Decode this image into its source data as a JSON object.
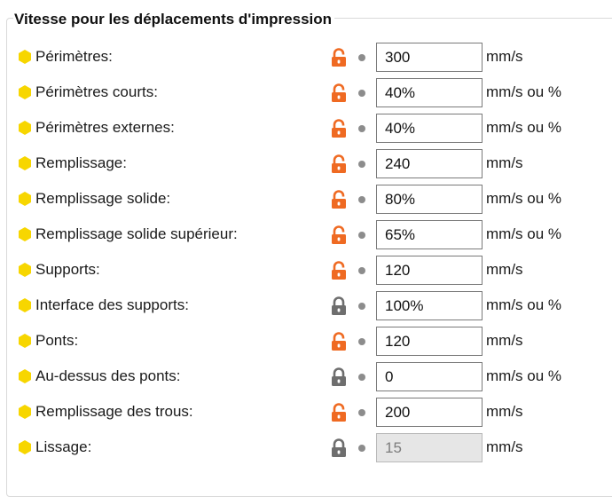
{
  "section": {
    "title": "Vitesse pour les déplacements d'impression"
  },
  "colors": {
    "bullet": "#f7d600",
    "lock_open": "#ef6a22",
    "lock_closed": "#6e6e6e",
    "dot": "#8c8c8c"
  },
  "rows": [
    {
      "label": "Périmètres:",
      "value": "300",
      "unit": "mm/s",
      "lock": "open",
      "disabled": false
    },
    {
      "label": "Périmètres courts:",
      "value": "40%",
      "unit": "mm/s ou %",
      "lock": "open",
      "disabled": false
    },
    {
      "label": "Périmètres externes:",
      "value": "40%",
      "unit": "mm/s ou %",
      "lock": "open",
      "disabled": false
    },
    {
      "label": "Remplissage:",
      "value": "240",
      "unit": "mm/s",
      "lock": "open",
      "disabled": false
    },
    {
      "label": "Remplissage solide:",
      "value": "80%",
      "unit": "mm/s ou %",
      "lock": "open",
      "disabled": false
    },
    {
      "label": "Remplissage solide supérieur:",
      "value": "65%",
      "unit": "mm/s ou %",
      "lock": "open",
      "disabled": false
    },
    {
      "label": "Supports:",
      "value": "120",
      "unit": "mm/s",
      "lock": "open",
      "disabled": false
    },
    {
      "label": "Interface des supports:",
      "value": "100%",
      "unit": "mm/s ou %",
      "lock": "closed",
      "disabled": false
    },
    {
      "label": "Ponts:",
      "value": "120",
      "unit": "mm/s",
      "lock": "open",
      "disabled": false
    },
    {
      "label": "Au-dessus des ponts:",
      "value": "0",
      "unit": "mm/s ou %",
      "lock": "closed",
      "disabled": false
    },
    {
      "label": "Remplissage des trous:",
      "value": "200",
      "unit": "mm/s",
      "lock": "open",
      "disabled": false
    },
    {
      "label": "Lissage:",
      "value": "15",
      "unit": "mm/s",
      "lock": "closed",
      "disabled": true
    }
  ]
}
